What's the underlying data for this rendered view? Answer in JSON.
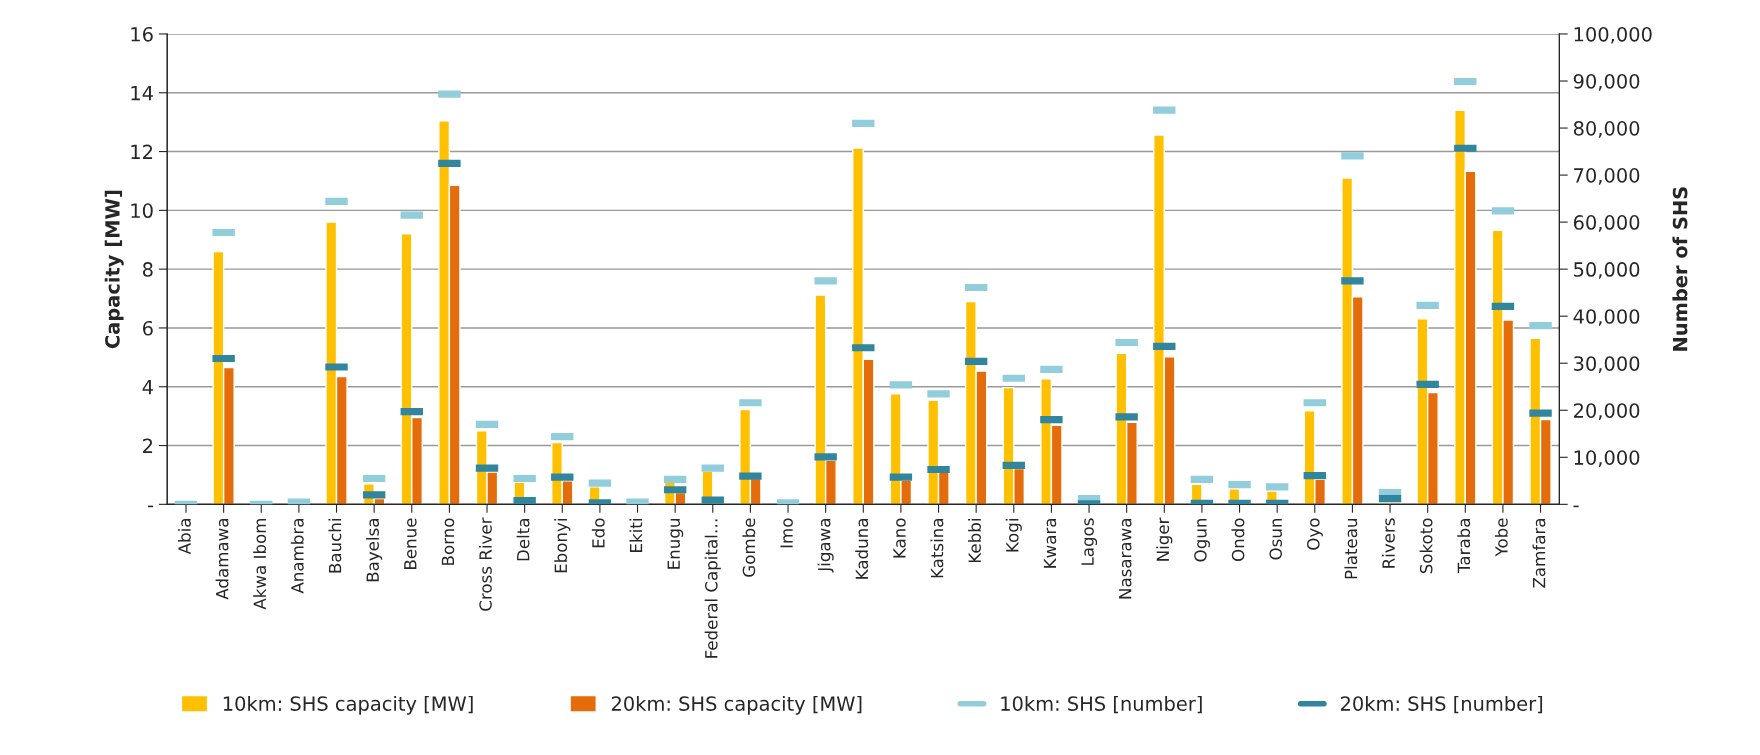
{
  "chart_data": {
    "type": "bar",
    "ylabel": "Capacity [MW]",
    "y2label": "Number of SHS",
    "categories": [
      "Abia",
      "Adamawa",
      "Akwa Ibom",
      "Anambra",
      "Bauchi",
      "Bayelsa",
      "Benue",
      "Borno",
      "Cross River",
      "Delta",
      "Ebonyi",
      "Edo",
      "Ekiti",
      "Enugu",
      "Federal Capital…",
      "Gombe",
      "Imo",
      "Jigawa",
      "Kaduna",
      "Kano",
      "Katsina",
      "Kebbi",
      "Kogi",
      "Kwara",
      "Lagos",
      "Nasarawa",
      "Niger",
      "Ogun",
      "Ondo",
      "Osun",
      "Oyo",
      "Plateau",
      "Rivers",
      "Sokoto",
      "Taraba",
      "Yobe",
      "Zamfara"
    ],
    "series": [
      {
        "name": "10km: SHS capacity [MW]",
        "color": "#ffc000",
        "values": [
          null,
          8.6,
          null,
          null,
          9.6,
          0.7,
          9.2,
          13.05,
          2.5,
          0.75,
          2.1,
          0.6,
          null,
          0.75,
          1.12,
          3.22,
          null,
          7.12,
          12.12,
          3.76,
          3.54,
          6.9,
          3.97,
          4.27,
          null,
          5.14,
          12.56,
          0.68,
          0.53,
          0.45,
          3.18,
          11.1,
          0.05,
          6.31,
          13.4,
          9.32,
          5.65
        ]
      },
      {
        "name": "20km: SHS capacity [MW]",
        "color": "#e46c0a",
        "values": [
          null,
          4.65,
          null,
          null,
          4.35,
          0.2,
          2.95,
          10.85,
          1.1,
          null,
          0.8,
          null,
          null,
          0.4,
          null,
          0.88,
          null,
          1.5,
          4.93,
          0.82,
          1.09,
          4.53,
          1.22,
          2.69,
          null,
          2.79,
          5.02,
          null,
          null,
          null,
          0.85,
          7.06,
          0.05,
          3.8,
          11.33,
          6.27,
          2.88
        ]
      },
      {
        "name": "10km: SHS [number]",
        "type": "scatter",
        "axis": "y2",
        "color": "#92cddc",
        "values": [
          0,
          57800,
          0,
          500,
          64400,
          5500,
          61500,
          87200,
          17000,
          5500,
          14400,
          4500,
          500,
          5300,
          7700,
          21600,
          300,
          47500,
          81000,
          25400,
          23500,
          46100,
          26800,
          28700,
          1200,
          34400,
          83800,
          5300,
          4200,
          3700,
          21600,
          74100,
          2500,
          42300,
          89900,
          62400,
          38000
        ]
      },
      {
        "name": "20km: SHS [number]",
        "type": "scatter",
        "axis": "y2",
        "color": "#31859c",
        "values": [
          null,
          31000,
          null,
          null,
          29200,
          2000,
          19700,
          72500,
          7700,
          800,
          5800,
          300,
          null,
          3100,
          900,
          6000,
          null,
          10100,
          33300,
          5800,
          7400,
          30400,
          8300,
          18000,
          100,
          18600,
          33600,
          200,
          200,
          200,
          6100,
          47500,
          1200,
          25500,
          75700,
          42100,
          19400
        ]
      }
    ],
    "ylim": [
      0,
      16
    ],
    "yticks": [
      {
        "value": 0,
        "label": "-"
      },
      2,
      4,
      6,
      8,
      10,
      12,
      14,
      16
    ],
    "y2lim": [
      0,
      100000
    ],
    "y2ticks": [
      {
        "value": 0,
        "label": "-"
      },
      {
        "value": 10000,
        "label": "10,000"
      },
      {
        "value": 20000,
        "label": "20,000"
      },
      {
        "value": 30000,
        "label": "30,000"
      },
      {
        "value": 40000,
        "label": "40,000"
      },
      {
        "value": 50000,
        "label": "50,000"
      },
      {
        "value": 60000,
        "label": "60,000"
      },
      {
        "value": 70000,
        "label": "70,000"
      },
      {
        "value": 80000,
        "label": "80,000"
      },
      {
        "value": 90000,
        "label": "90,000"
      },
      {
        "value": 100000,
        "label": "100,000"
      }
    ],
    "grid": "y",
    "legend": "bottom"
  }
}
